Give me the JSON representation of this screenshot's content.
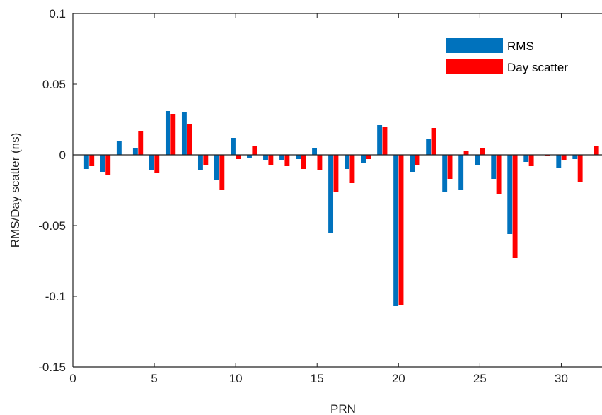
{
  "chart_data": {
    "type": "bar",
    "title": "",
    "xlabel": "PRN",
    "ylabel": "RMS/Day scatter (ns)",
    "xlim": [
      0,
      32.5
    ],
    "ylim": [
      -0.15,
      0.1
    ],
    "xticks": [
      0,
      5,
      10,
      15,
      20,
      25,
      30
    ],
    "xtick_labels": [
      "0",
      "5",
      "10",
      "15",
      "20",
      "25",
      "30"
    ],
    "yticks": [
      -0.15,
      -0.1,
      -0.05,
      0,
      0.05,
      0.1
    ],
    "ytick_labels": [
      "-0.15",
      "-0.1",
      "-0.05",
      "0",
      "0.05",
      "0.1"
    ],
    "grid": false,
    "legend_position": "top-right",
    "x": [
      1,
      2,
      3,
      4,
      5,
      6,
      7,
      8,
      9,
      10,
      11,
      12,
      13,
      14,
      15,
      16,
      17,
      18,
      19,
      20,
      21,
      22,
      23,
      24,
      25,
      26,
      27,
      28,
      29,
      30,
      31,
      32
    ],
    "series": [
      {
        "name": "RMS",
        "color": "#0072BD",
        "values": [
          -0.01,
          -0.012,
          0.01,
          0.005,
          -0.011,
          0.031,
          0.03,
          -0.011,
          -0.018,
          0.012,
          -0.002,
          -0.004,
          -0.004,
          -0.003,
          0.005,
          -0.055,
          -0.01,
          -0.006,
          0.021,
          -0.107,
          -0.012,
          0.011,
          -0.026,
          -0.025,
          -0.007,
          -0.017,
          -0.056,
          -0.005,
          0.0,
          -0.009,
          -0.003,
          0.0
        ]
      },
      {
        "name": "Day scatter",
        "color": "#FF0000",
        "values": [
          -0.008,
          -0.014,
          0.0,
          0.017,
          -0.013,
          0.029,
          0.022,
          -0.007,
          -0.025,
          -0.003,
          0.006,
          -0.007,
          -0.008,
          -0.01,
          -0.011,
          -0.026,
          -0.02,
          -0.003,
          0.02,
          -0.106,
          -0.007,
          0.019,
          -0.017,
          0.003,
          0.005,
          -0.028,
          -0.073,
          -0.008,
          -0.001,
          -0.004,
          -0.019,
          0.006
        ]
      }
    ]
  }
}
